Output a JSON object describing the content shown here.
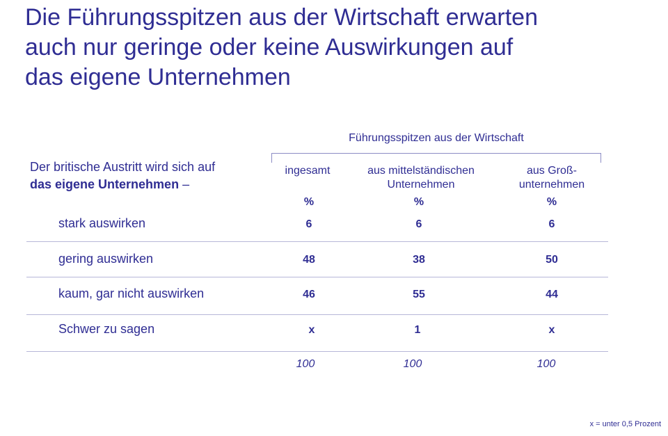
{
  "title": {
    "line1": "Die Führungsspitzen aus der Wirtschaft erwarten",
    "line2": "auch nur geringe oder keine Auswirkungen auf",
    "line3": "das eigene Unternehmen"
  },
  "table": {
    "group_header": "Führungsspitzen aus der Wirtschaft",
    "question_part1": "Der britische Austritt wird sich auf",
    "question_bold": "das eigene Unternehmen",
    "question_suffix": " –",
    "columns": [
      {
        "line1": "ingesamt",
        "line2": "",
        "unit": "%"
      },
      {
        "line1": "aus mittelständischen",
        "line2": "Unternehmen",
        "unit": "%"
      },
      {
        "line1": "aus Groß-",
        "line2": "unternehmen",
        "unit": "%"
      }
    ],
    "rows": [
      {
        "label": "stark auswirken",
        "values": [
          "6",
          "6",
          "6"
        ]
      },
      {
        "label": "gering auswirken",
        "values": [
          "48",
          "38",
          "50"
        ]
      },
      {
        "label": "kaum, gar nicht auswirken",
        "values": [
          "46",
          "55",
          "44"
        ]
      },
      {
        "label": "Schwer zu sagen",
        "values": [
          "x",
          "1",
          "x"
        ]
      }
    ],
    "totals": [
      "100",
      "100",
      "100"
    ]
  },
  "footnote": "x = unter 0,5 Prozent",
  "colors": {
    "text": "#2f2d93",
    "rule": "#b6b6d8"
  }
}
